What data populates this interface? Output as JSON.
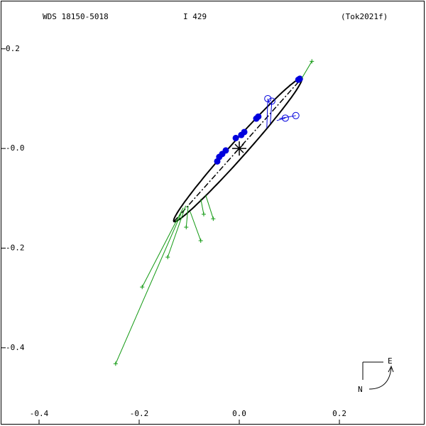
{
  "chart_data": {
    "type": "orbit",
    "title": "WDS 18150-5018",
    "subtitle": "I   429",
    "reference": "(Tok2021f)",
    "compass": {
      "east": "E",
      "north": "N"
    },
    "xlim": [
      -0.478,
      0.373
    ],
    "ylim": [
      -0.557,
      0.298
    ],
    "xticks": [
      -0.4,
      -0.2,
      {
        "value": 0,
        "label": "0.0"
      },
      0.2
    ],
    "yticks": [
      0.2,
      {
        "value": 0,
        "label": "-0.0"
      },
      -0.2,
      -0.4
    ],
    "primary_position": [
      0,
      0
    ],
    "orbit": {
      "center": [
        -0.003,
        -0.003
      ],
      "semi_major": 0.192,
      "semi_minor": 0.016,
      "angle_deg": 48.4,
      "color": "#000000"
    },
    "series": [
      {
        "name": "filled",
        "color": "#0000dd",
        "x": [
          0.118,
          0.121,
          0.038,
          0.034,
          0.01,
          0.004,
          -0.007,
          -0.027,
          -0.034,
          -0.04,
          -0.044
        ],
        "values": [
          0.138,
          0.14,
          0.064,
          0.06,
          0.033,
          0.027,
          0.021,
          -0.004,
          -0.011,
          -0.017,
          -0.026
        ]
      },
      {
        "name": "open",
        "color": "#0000dd",
        "x": [
          0.057,
          0.065,
          0.092,
          0.113
        ],
        "values": [
          0.1,
          0.095,
          0.061,
          0.066
        ],
        "orbit_x": [
          0.055,
          0.062,
          0.075,
          0.08
        ],
        "orbit_values": [
          0.041,
          0.05,
          0.056,
          0.06
        ]
      },
      {
        "name": "plus",
        "color": "#119911",
        "x": [
          0.145,
          -0.247,
          -0.194,
          -0.143,
          -0.106,
          -0.077,
          -0.071,
          -0.052
        ],
        "values": [
          0.175,
          -0.432,
          -0.278,
          -0.218,
          -0.158,
          -0.185,
          -0.132,
          -0.141
        ],
        "orbit_x": [
          0.125,
          -0.116,
          -0.112,
          -0.107,
          -0.102,
          -0.098,
          -0.077,
          -0.067
        ],
        "orbit_values": [
          0.141,
          -0.13,
          -0.119,
          -0.115,
          -0.115,
          -0.127,
          -0.101,
          -0.094
        ]
      }
    ]
  }
}
